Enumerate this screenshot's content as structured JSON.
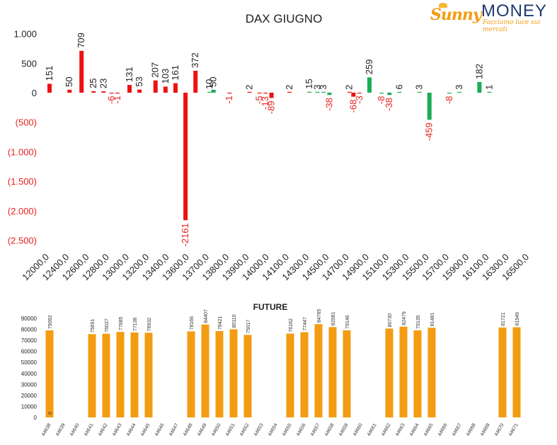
{
  "logo": {
    "brand_left": "Sunny",
    "brand_right": "MONEY",
    "tagline": "Facciamo luce sui mercati"
  },
  "chart_data": [
    {
      "type": "bar",
      "title": "DAX GIUGNO",
      "ylim": [
        -2500,
        1000
      ],
      "yticks": [
        1000,
        500,
        0,
        -500,
        -1000,
        -1500,
        -2000,
        -2500
      ],
      "ytick_labels": [
        "1.000",
        "500",
        "0",
        "(500)",
        "(1.000)",
        "(1.500)",
        "(2.000)",
        "(2.500)"
      ],
      "xtick_labels": [
        "12000,0",
        "12400,0",
        "12600,0",
        "12800,0",
        "13000,0",
        "13200,0",
        "13400,0",
        "13600,0",
        "13700,0",
        "13800,0",
        "13900,0",
        "14000,0",
        "14100,0",
        "14300,0",
        "14500,0",
        "14700,0",
        "14900,0",
        "15100,0",
        "15300,0",
        "15500,0",
        "15700,0",
        "15900,0",
        "16100,0",
        "16300,0",
        "16500,0"
      ],
      "colors": {
        "red": "#ee1111",
        "green": "#1aad55",
        "negative_label": "#e52222",
        "positive_label": "#222222"
      },
      "bars": [
        {
          "pos": 0,
          "value": 151,
          "color": "red"
        },
        {
          "pos": 1,
          "value": 50,
          "color": "red"
        },
        {
          "pos": 1.6,
          "value": 709,
          "color": "red"
        },
        {
          "pos": 2.2,
          "value": 25,
          "color": "red"
        },
        {
          "pos": 2.7,
          "value": 23,
          "color": "red"
        },
        {
          "pos": 3.1,
          "value": -6,
          "color": "red"
        },
        {
          "pos": 3.4,
          "value": -1,
          "color": "red"
        },
        {
          "pos": 4,
          "value": 131,
          "color": "red"
        },
        {
          "pos": 4.5,
          "value": 53,
          "color": "red"
        },
        {
          "pos": 5.3,
          "value": 207,
          "color": "red"
        },
        {
          "pos": 5.8,
          "value": 103,
          "color": "red"
        },
        {
          "pos": 6.3,
          "value": 161,
          "color": "red"
        },
        {
          "pos": 6.8,
          "value": -2161,
          "color": "red"
        },
        {
          "pos": 7.3,
          "value": 372,
          "color": "red"
        },
        {
          "pos": 8,
          "value": 10,
          "color": "green"
        },
        {
          "pos": 8.2,
          "value": 50,
          "color": "green"
        },
        {
          "pos": 9,
          "value": -1,
          "color": "red"
        },
        {
          "pos": 10,
          "value": 2,
          "color": "red"
        },
        {
          "pos": 10.5,
          "value": -5,
          "color": "red"
        },
        {
          "pos": 10.8,
          "value": -13,
          "color": "red"
        },
        {
          "pos": 11.1,
          "value": -89,
          "color": "red"
        },
        {
          "pos": 12,
          "value": 2,
          "color": "red"
        },
        {
          "pos": 13,
          "value": 15,
          "color": "green"
        },
        {
          "pos": 13.4,
          "value": 3,
          "color": "green"
        },
        {
          "pos": 13.7,
          "value": 3,
          "color": "green"
        },
        {
          "pos": 14,
          "value": -38,
          "color": "green"
        },
        {
          "pos": 15,
          "value": 2,
          "color": "red"
        },
        {
          "pos": 15.2,
          "value": -68,
          "color": "red"
        },
        {
          "pos": 15.5,
          "value": -3,
          "color": "red"
        },
        {
          "pos": 16,
          "value": 259,
          "color": "green"
        },
        {
          "pos": 16.6,
          "value": -8,
          "color": "green"
        },
        {
          "pos": 17,
          "value": -38,
          "color": "green"
        },
        {
          "pos": 17.5,
          "value": 6,
          "color": "green"
        },
        {
          "pos": 18.5,
          "value": 3,
          "color": "green"
        },
        {
          "pos": 19,
          "value": -459,
          "color": "green"
        },
        {
          "pos": 20,
          "value": -8,
          "color": "green"
        },
        {
          "pos": 20.5,
          "value": 3,
          "color": "green"
        },
        {
          "pos": 21.5,
          "value": 182,
          "color": "green"
        },
        {
          "pos": 22,
          "value": 1,
          "color": "green"
        }
      ]
    },
    {
      "type": "bar",
      "title": "FUTURE",
      "ylim": [
        0,
        90000
      ],
      "yticks": [
        0,
        10000,
        20000,
        30000,
        40000,
        50000,
        60000,
        70000,
        80000,
        90000
      ],
      "color": "#f39c12",
      "categories": [
        "44638",
        "44639",
        "44640",
        "44641",
        "44642",
        "44643",
        "44644",
        "44645",
        "44646",
        "44647",
        "44648",
        "44649",
        "44650",
        "44651",
        "44652",
        "44653",
        "44654",
        "44655",
        "44656",
        "44657",
        "44658",
        "44659",
        "44660",
        "44661",
        "44662",
        "44663",
        "44664",
        "44665",
        "44666",
        "44667",
        "44668",
        "44669",
        "44670",
        "44671"
      ],
      "values": [
        79092,
        null,
        null,
        75691,
        76027,
        77685,
        77136,
        76932,
        null,
        null,
        78166,
        84407,
        78421,
        80110,
        75017,
        null,
        null,
        76162,
        77447,
        84765,
        82081,
        79146,
        null,
        null,
        80730,
        82479,
        79135,
        81481,
        null,
        null,
        null,
        null,
        81721,
        81949
      ],
      "inner_label": "0"
    }
  ]
}
